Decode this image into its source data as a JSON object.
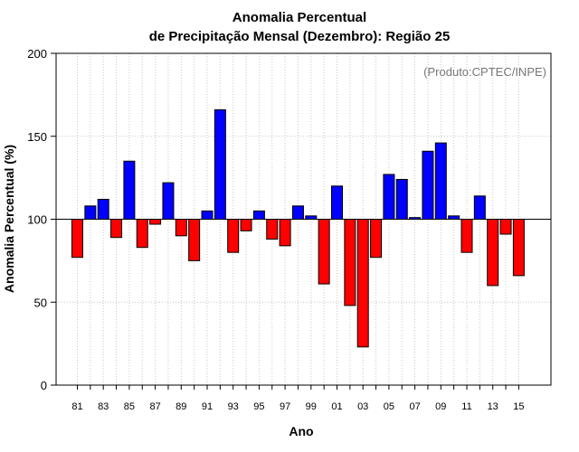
{
  "chart_data": {
    "type": "bar",
    "title_line1": "Anomalia Percentual",
    "title_line2": "de Precipitação Mensal (Dezembro): Região 25",
    "xlabel": "Ano",
    "ylabel": "Anomalia Percentual (%)",
    "credit": "(Produto:CPTEC/INPE)",
    "ylim": [
      0,
      200
    ],
    "yticks": [
      0,
      50,
      100,
      150,
      200
    ],
    "baseline": 100,
    "grid": true,
    "colors": {
      "above": "#0000ff",
      "below": "#ff0000",
      "grid": "#c8c8c8"
    },
    "categories": [
      "81",
      "82",
      "83",
      "84",
      "85",
      "86",
      "87",
      "88",
      "89",
      "90",
      "91",
      "92",
      "93",
      "94",
      "95",
      "96",
      "97",
      "98",
      "99",
      "00",
      "01",
      "02",
      "03",
      "04",
      "05",
      "06",
      "07",
      "08",
      "09",
      "10",
      "11",
      "12",
      "13",
      "14",
      "15"
    ],
    "values": [
      77,
      108,
      112,
      89,
      135,
      83,
      97,
      122,
      90,
      75,
      105,
      166,
      80,
      93,
      105,
      88,
      84,
      108,
      102,
      61,
      120,
      48,
      23,
      77,
      127,
      124,
      101,
      141,
      146,
      102,
      80,
      114,
      60,
      91,
      66
    ],
    "xtick_labels": [
      "81",
      "83",
      "85",
      "87",
      "89",
      "91",
      "93",
      "95",
      "97",
      "99",
      "01",
      "03",
      "05",
      "07",
      "09",
      "11",
      "13",
      "15"
    ]
  }
}
